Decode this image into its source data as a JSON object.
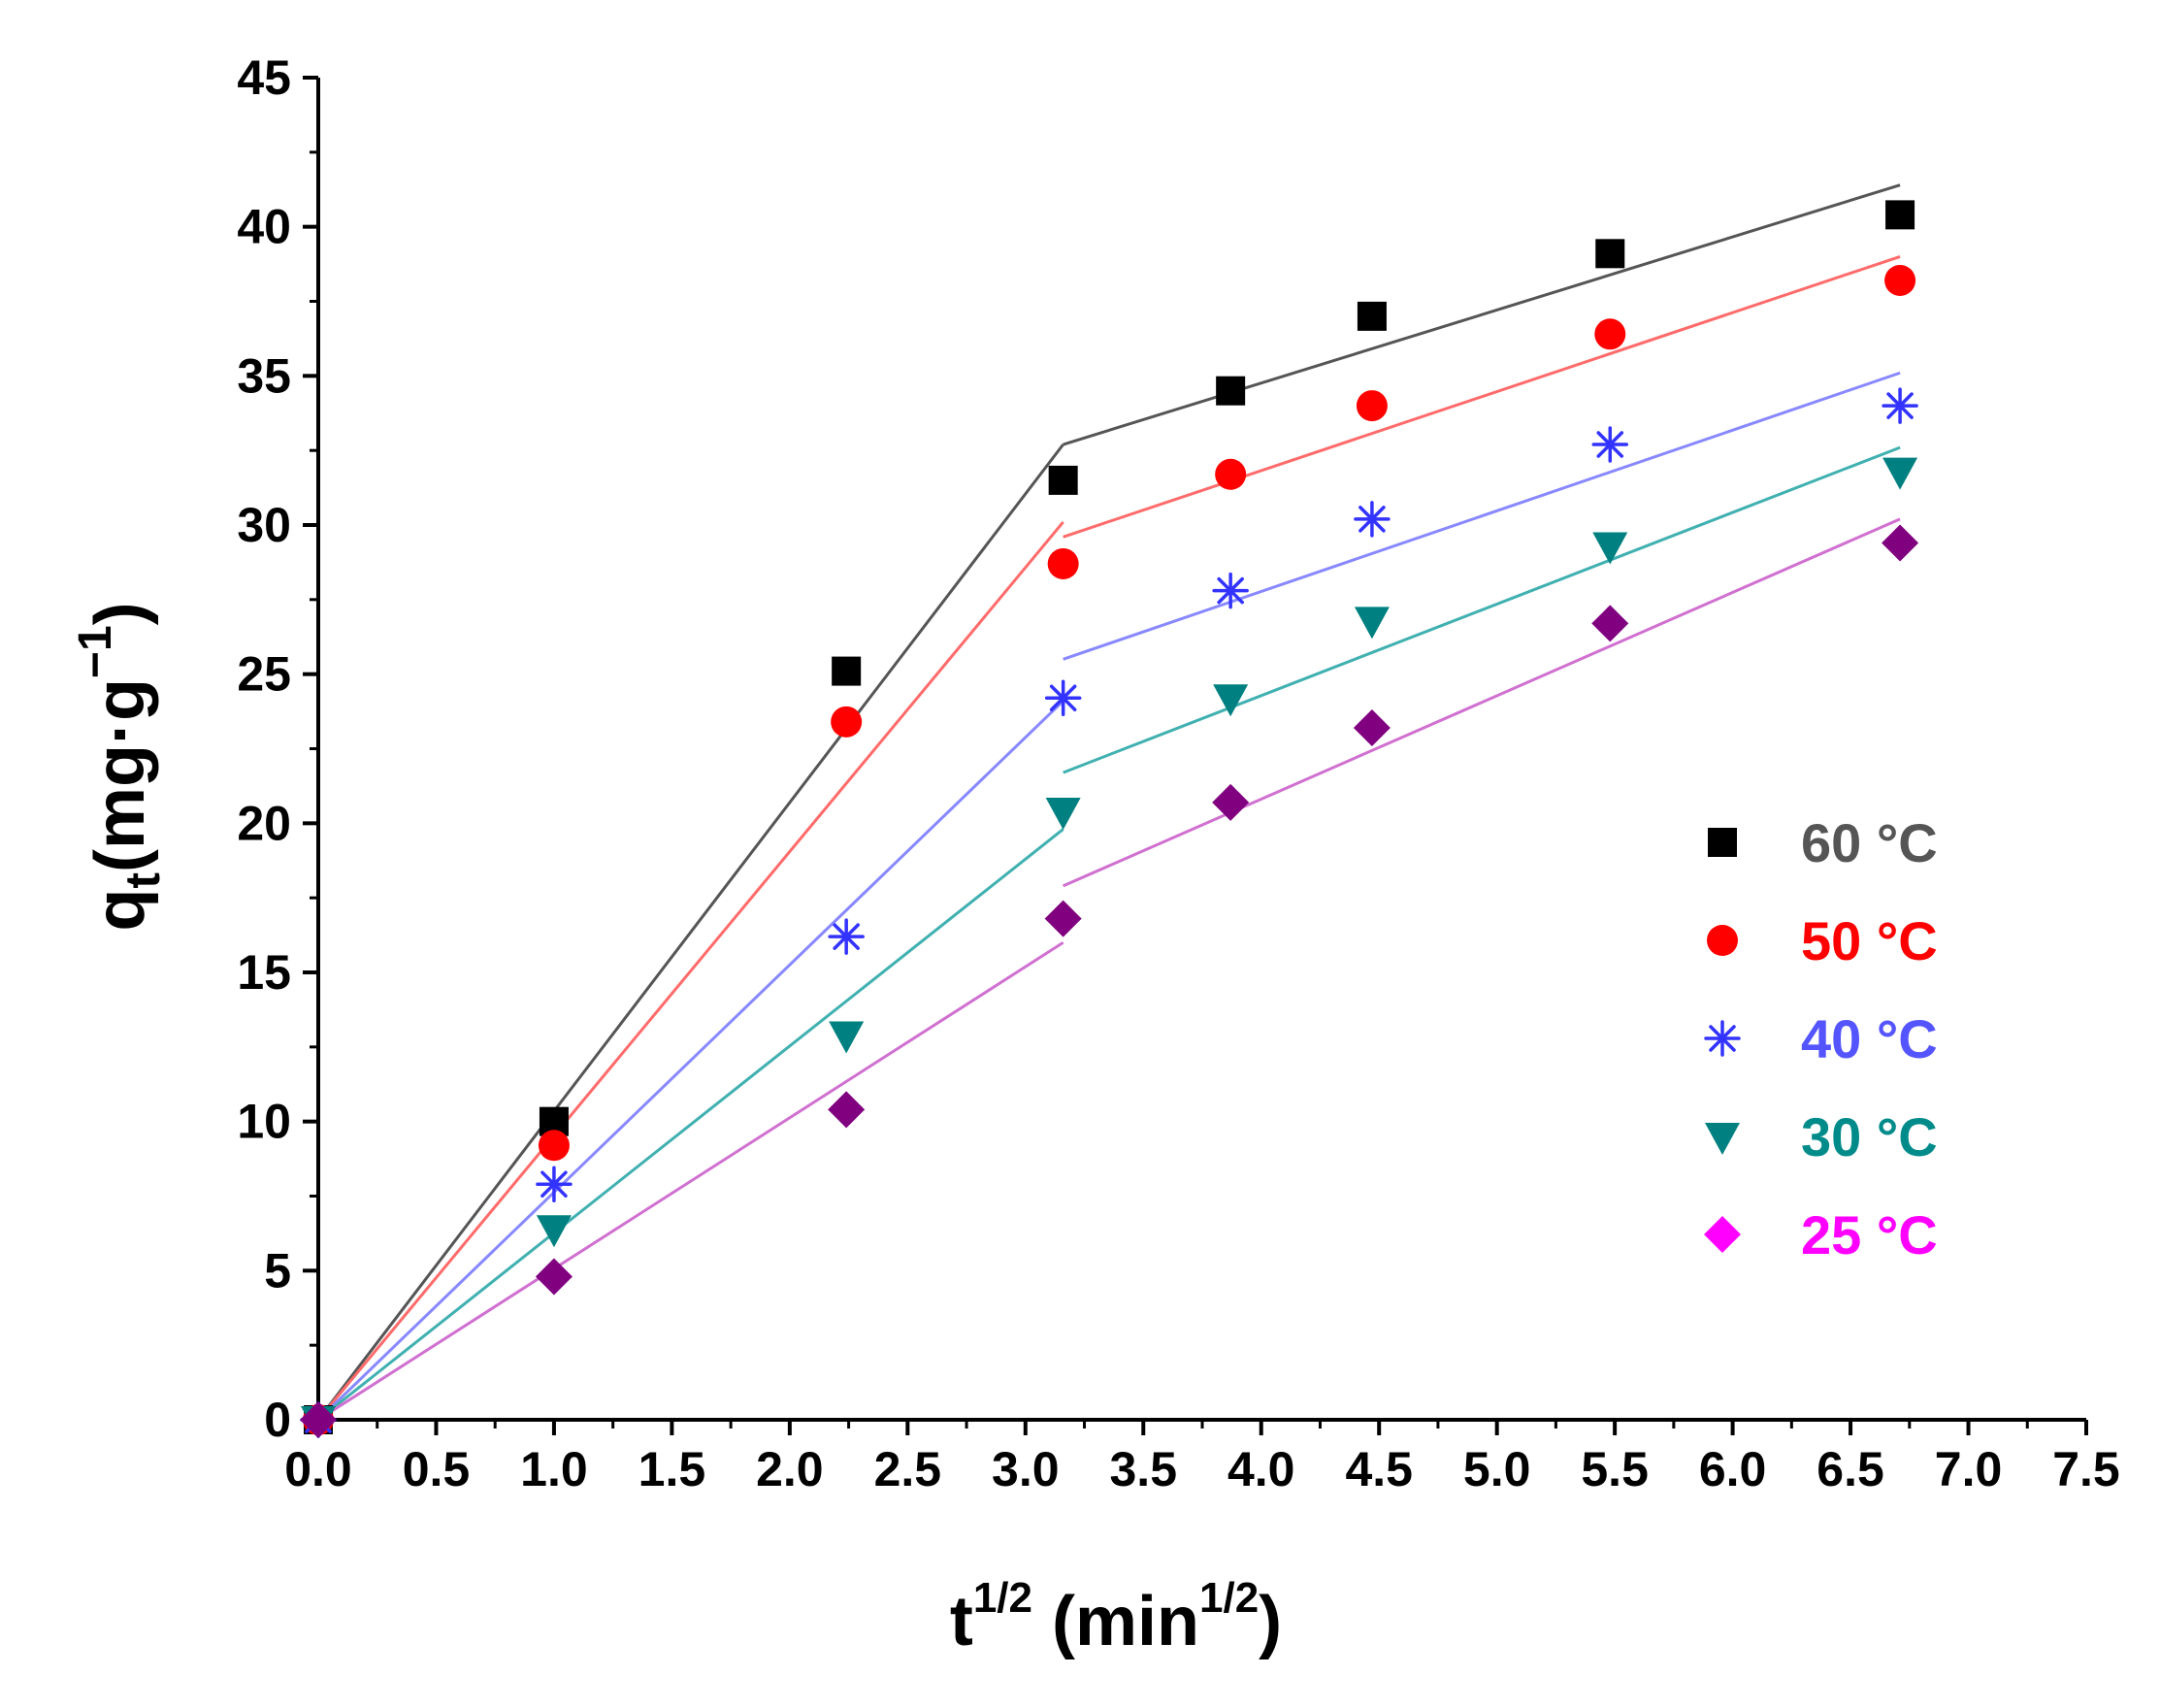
{
  "chart_data": {
    "type": "scatter",
    "title": "",
    "xlabel": {
      "base": "t",
      "sup": "1/2",
      "unit": "min",
      "unit_sup": "1/2"
    },
    "ylabel": {
      "base": "q",
      "sub": "t",
      "unit": "mg·g",
      "unit_sup": "−1"
    },
    "xlim": [
      0,
      7.5
    ],
    "ylim": [
      0,
      45
    ],
    "xticks": [
      "0.0",
      "0.5",
      "1.0",
      "1.5",
      "2.0",
      "2.5",
      "3.0",
      "3.5",
      "4.0",
      "4.5",
      "5.0",
      "5.5",
      "6.0",
      "6.5",
      "7.0",
      "7.5"
    ],
    "yticks": [
      "0",
      "5",
      "10",
      "15",
      "20",
      "25",
      "30",
      "35",
      "40",
      "45"
    ],
    "legend_position": "middle-right",
    "series": [
      {
        "name": "60 °C",
        "marker": "square",
        "marker_color": "#000000",
        "line_color": "#555555",
        "label_color": "#555555",
        "x": [
          0,
          1.0,
          2.24,
          3.16,
          3.87,
          4.47,
          5.48,
          6.71
        ],
        "y": [
          0,
          10.0,
          25.1,
          31.5,
          34.5,
          37.0,
          39.1,
          40.4
        ],
        "fit1": [
          [
            0,
            0
          ],
          [
            3.16,
            32.7
          ]
        ],
        "fit2": [
          [
            3.16,
            32.7
          ],
          [
            6.71,
            41.4
          ]
        ]
      },
      {
        "name": "50 °C",
        "marker": "circle",
        "marker_color": "#ff0000",
        "line_color": "#ff6b6b",
        "label_color": "#ff0000",
        "x": [
          0,
          1.0,
          2.24,
          3.16,
          3.87,
          4.47,
          5.48,
          6.71
        ],
        "y": [
          0,
          9.2,
          23.4,
          28.7,
          31.7,
          34.0,
          36.4,
          38.2
        ],
        "fit1": [
          [
            0,
            0
          ],
          [
            3.16,
            30.1
          ]
        ],
        "fit2": [
          [
            3.16,
            29.6
          ],
          [
            6.71,
            39.0
          ]
        ]
      },
      {
        "name": "40 °C",
        "marker": "asterisk",
        "marker_color": "#3333ff",
        "line_color": "#8888ff",
        "label_color": "#5555ff",
        "x": [
          0,
          1.0,
          2.24,
          3.16,
          3.87,
          4.47,
          5.48,
          6.71
        ],
        "y": [
          0,
          7.9,
          16.2,
          24.2,
          27.8,
          30.2,
          32.7,
          34.0
        ],
        "fit1": [
          [
            0,
            0
          ],
          [
            3.16,
            24.1
          ]
        ],
        "fit2": [
          [
            3.16,
            25.5
          ],
          [
            6.71,
            35.1
          ]
        ]
      },
      {
        "name": "30 °C",
        "marker": "triangle-down",
        "marker_color": "#008080",
        "line_color": "#40b0b0",
        "label_color": "#008b8b",
        "x": [
          0,
          1.0,
          2.24,
          3.16,
          3.87,
          4.47,
          5.48,
          6.71
        ],
        "y": [
          0,
          6.4,
          12.9,
          20.4,
          24.2,
          26.8,
          29.3,
          31.8
        ],
        "fit1": [
          [
            0,
            0
          ],
          [
            3.16,
            19.8
          ]
        ],
        "fit2": [
          [
            3.16,
            21.7
          ],
          [
            6.71,
            32.6
          ]
        ]
      },
      {
        "name": "25 °C",
        "marker": "diamond",
        "marker_color": "#800080",
        "line_color": "#d070d0",
        "label_color": "#ff00ff",
        "legend_marker_color": "#ff00ff",
        "x": [
          0,
          1.0,
          2.24,
          3.16,
          3.87,
          4.47,
          5.48,
          6.71
        ],
        "y": [
          0,
          4.8,
          10.4,
          16.8,
          20.7,
          23.2,
          26.7,
          29.4
        ],
        "fit1": [
          [
            0,
            0
          ],
          [
            3.16,
            16.0
          ]
        ],
        "fit2": [
          [
            3.16,
            17.9
          ],
          [
            6.71,
            30.2
          ]
        ]
      }
    ]
  }
}
